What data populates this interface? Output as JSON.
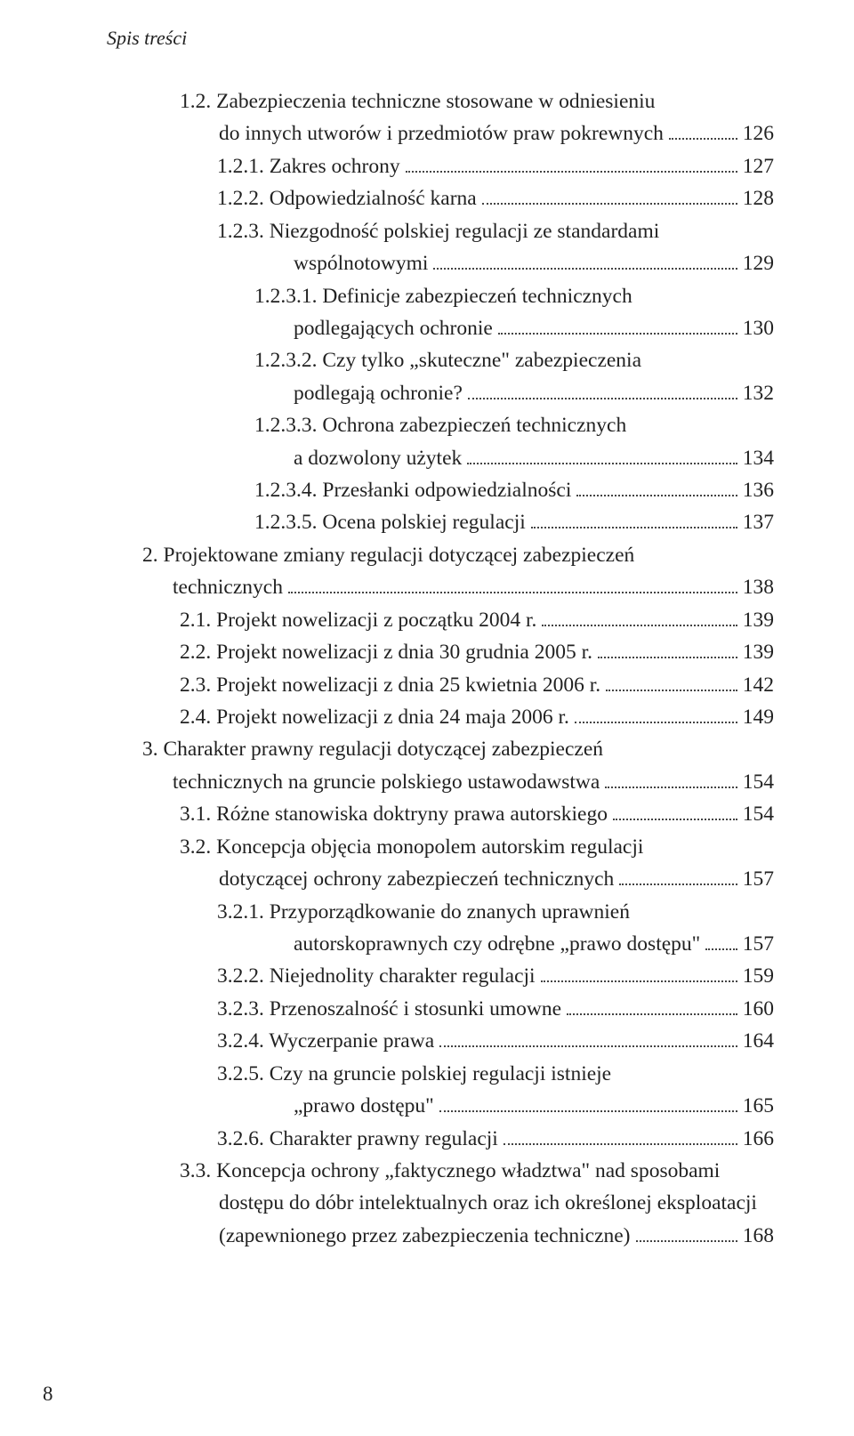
{
  "runningHead": "Spis treści",
  "folio": "8",
  "style": {
    "fontFamily": "Palatino Linotype / Book Antiqua (serif)",
    "bodyFontSizePx": 23.5,
    "runningHeadFontSizePx": 22,
    "runningHeadItalic": true,
    "textColor": "#222222",
    "backgroundColor": "#ffffff",
    "dotLeaderColor": "#444444",
    "pageWidthPx": 960,
    "pageHeightPx": 1614,
    "indentStepPx": 42
  },
  "entries": [
    {
      "indent": "lvl3",
      "cont": true,
      "text": "1.2. Zabezpieczenia techniczne stosowane w odniesieniu"
    },
    {
      "indent": "hang2",
      "cont": false,
      "text": "do innych utworów i przedmiotów praw pokrewnych",
      "page": "126"
    },
    {
      "indent": "lvl4",
      "cont": false,
      "text": "1.2.1. Zakres ochrony",
      "page": "127"
    },
    {
      "indent": "lvl4",
      "cont": false,
      "text": "1.2.2. Odpowiedzialność karna",
      "page": "128"
    },
    {
      "indent": "lvl4",
      "cont": true,
      "text": "1.2.3. Niezgodność polskiej regulacji ze standardami"
    },
    {
      "indent": "hang4",
      "cont": false,
      "text": "wspólnotowymi",
      "page": "129"
    },
    {
      "indent": "lvl5",
      "cont": true,
      "text": "1.2.3.1. Definicje zabezpieczeń technicznych"
    },
    {
      "indent": "hang4",
      "cont": false,
      "text": "podlegających ochronie",
      "page": "130"
    },
    {
      "indent": "lvl5",
      "cont": true,
      "text": "1.2.3.2. Czy tylko „skuteczne\" zabezpieczenia"
    },
    {
      "indent": "hang4",
      "cont": false,
      "text": "podlegają ochronie?",
      "page": "132"
    },
    {
      "indent": "lvl5",
      "cont": true,
      "text": "1.2.3.3. Ochrona zabezpieczeń technicznych"
    },
    {
      "indent": "hang4",
      "cont": false,
      "text": "a dozwolony użytek",
      "page": "134"
    },
    {
      "indent": "lvl5",
      "cont": false,
      "text": "1.2.3.4. Przesłanki odpowiedzialności",
      "page": "136"
    },
    {
      "indent": "lvl5",
      "cont": false,
      "text": "1.2.3.5. Ocena polskiej regulacji",
      "page": "137"
    },
    {
      "indent": "lvl2",
      "cont": true,
      "text": "2. Projektowane zmiany regulacji dotyczącej zabezpieczeń"
    },
    {
      "indent": "hang1",
      "cont": false,
      "text": "technicznych",
      "page": "138"
    },
    {
      "indent": "lvl3",
      "cont": false,
      "text": "2.1. Projekt nowelizacji z początku 2004 r.",
      "page": "139"
    },
    {
      "indent": "lvl3",
      "cont": false,
      "text": "2.2. Projekt nowelizacji z dnia 30 grudnia 2005 r.",
      "page": "139"
    },
    {
      "indent": "lvl3",
      "cont": false,
      "text": "2.3. Projekt nowelizacji z dnia 25 kwietnia 2006 r.",
      "page": "142"
    },
    {
      "indent": "lvl3",
      "cont": false,
      "text": "2.4. Projekt nowelizacji z dnia 24 maja 2006 r.",
      "page": "149"
    },
    {
      "indent": "lvl2",
      "cont": true,
      "text": "3. Charakter prawny regulacji dotyczącej zabezpieczeń"
    },
    {
      "indent": "hang1",
      "cont": false,
      "text": "technicznych na gruncie polskiego ustawodawstwa",
      "page": "154"
    },
    {
      "indent": "lvl3",
      "cont": false,
      "text": "3.1. Różne stanowiska doktryny prawa autorskiego",
      "page": "154"
    },
    {
      "indent": "lvl3",
      "cont": true,
      "text": "3.2. Koncepcja objęcia monopolem autorskim regulacji"
    },
    {
      "indent": "hang2",
      "cont": false,
      "text": "dotyczącej ochrony zabezpieczeń technicznych",
      "page": "157"
    },
    {
      "indent": "lvl4",
      "cont": true,
      "text": "3.2.1. Przyporządkowanie do znanych uprawnień"
    },
    {
      "indent": "hang4",
      "cont": false,
      "text": "autorskoprawnych czy odrębne „prawo dostępu\"",
      "page": "157"
    },
    {
      "indent": "lvl4",
      "cont": false,
      "text": "3.2.2. Niejednolity charakter regulacji",
      "page": "159"
    },
    {
      "indent": "lvl4",
      "cont": false,
      "text": "3.2.3. Przenoszalność i stosunki umowne",
      "page": "160"
    },
    {
      "indent": "lvl4",
      "cont": false,
      "text": "3.2.4. Wyczerpanie prawa",
      "page": "164"
    },
    {
      "indent": "lvl4",
      "cont": true,
      "text": "3.2.5. Czy na gruncie polskiej regulacji istnieje"
    },
    {
      "indent": "hang4",
      "cont": false,
      "text": "„prawo dostępu\"",
      "page": "165"
    },
    {
      "indent": "lvl4",
      "cont": false,
      "text": "3.2.6. Charakter prawny regulacji",
      "page": "166"
    },
    {
      "indent": "lvl3",
      "cont": true,
      "text": "3.3. Koncepcja ochrony „faktycznego władztwa\" nad sposobami"
    },
    {
      "indent": "hang2",
      "cont": true,
      "text": "dostępu do dóbr intelektualnych oraz ich określonej eksploatacji"
    },
    {
      "indent": "hang2",
      "cont": false,
      "text": "(zapewnionego przez zabezpieczenia techniczne)",
      "page": "168"
    }
  ]
}
